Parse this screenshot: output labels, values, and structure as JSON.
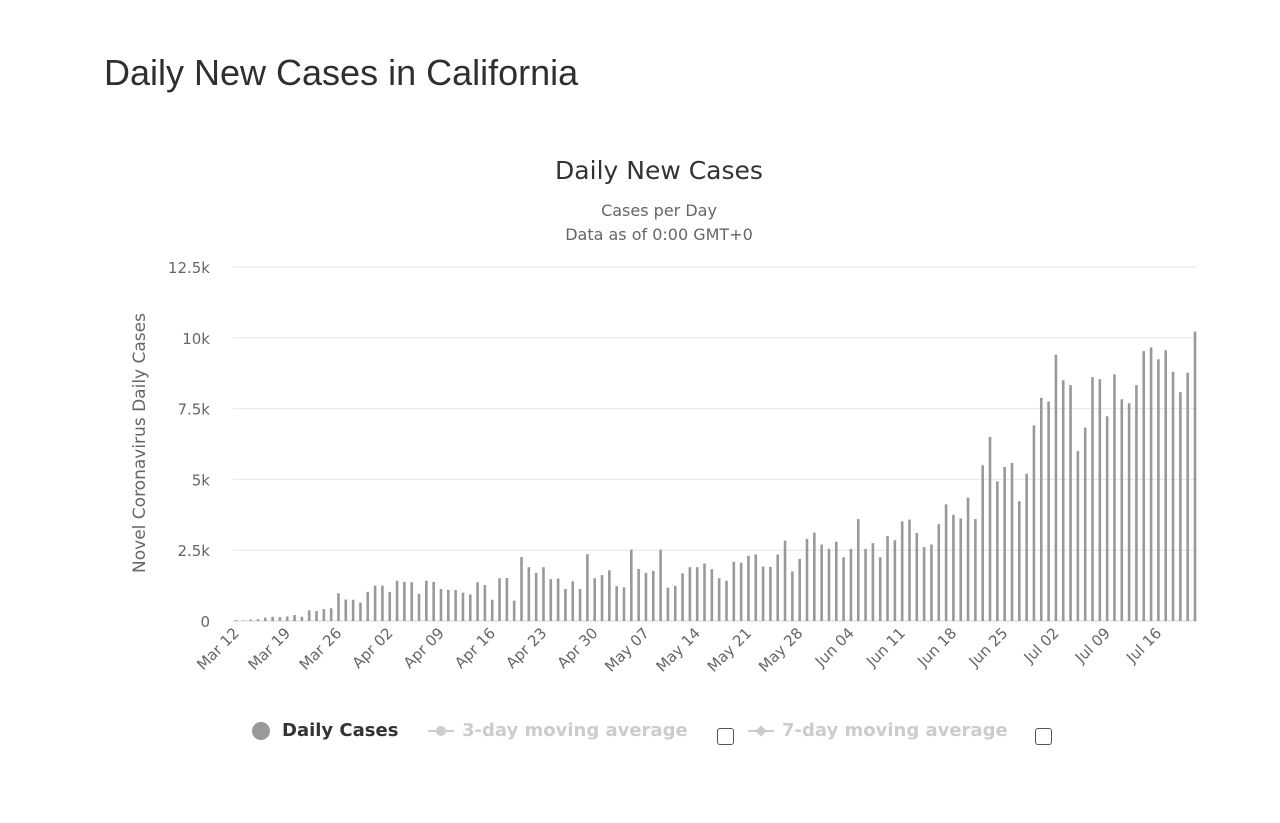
{
  "page": {
    "title": "Daily New Cases in California"
  },
  "chart_data": {
    "type": "bar",
    "title": "Daily New Cases",
    "subtitle": [
      "Cases per Day",
      "Data as of 0:00 GMT+0"
    ],
    "xlabel": "",
    "ylabel": "Novel Coronavirus Daily Cases",
    "ylim": [
      0,
      12500
    ],
    "yticks": [
      0,
      2500,
      5000,
      7500,
      10000,
      12500
    ],
    "ytick_labels": [
      "0",
      "2.5k",
      "5k",
      "7.5k",
      "10k",
      "12.5k"
    ],
    "xtick_labels": [
      "Mar 12",
      "Mar 19",
      "Mar 26",
      "Apr 02",
      "Apr 09",
      "Apr 16",
      "Apr 23",
      "Apr 30",
      "May 07",
      "May 14",
      "May 21",
      "May 28",
      "Jun 04",
      "Jun 11",
      "Jun 18",
      "Jun 25",
      "Jul 02",
      "Jul 09",
      "Jul 16"
    ],
    "grid": true,
    "legend_position": "bottom",
    "bar_color": "#999999",
    "series": [
      {
        "name": "Daily Cases",
        "start_date": "Mar 12",
        "values": [
          30,
          20,
          50,
          60,
          120,
          150,
          140,
          160,
          210,
          150,
          380,
          350,
          420,
          450,
          980,
          760,
          750,
          650,
          1030,
          1250,
          1250,
          1030,
          1420,
          1380,
          1370,
          960,
          1420,
          1380,
          1130,
          1100,
          1090,
          1000,
          940,
          1370,
          1270,
          750,
          1510,
          1520,
          720,
          2260,
          1900,
          1700,
          1900,
          1480,
          1500,
          1130,
          1400,
          1130,
          2360,
          1510,
          1620,
          1790,
          1230,
          1190,
          2520,
          1840,
          1700,
          1770,
          2520,
          1180,
          1240,
          1680,
          1900,
          1900,
          2030,
          1830,
          1510,
          1420,
          2090,
          2060,
          2300,
          2350,
          1920,
          1910,
          2350,
          2840,
          1750,
          2190,
          2900,
          3120,
          2700,
          2550,
          2800,
          2250,
          2550,
          3600,
          2550,
          2750,
          2250,
          3000,
          2850,
          3520,
          3580,
          3110,
          2610,
          2700,
          3420,
          4120,
          3750,
          3620,
          4360,
          3600,
          5500,
          6500,
          4930,
          5440,
          5580,
          4230,
          5200,
          6910,
          7880,
          7750,
          9400,
          8500,
          8330,
          6000,
          6830,
          8610,
          8540,
          7230,
          8710,
          7830,
          7690,
          8330,
          9530,
          9660,
          9240,
          9560,
          8800,
          8080,
          8770,
          10220
        ]
      },
      {
        "name": "3-day moving average",
        "enabled": false
      },
      {
        "name": "7-day moving average",
        "enabled": false
      }
    ]
  }
}
